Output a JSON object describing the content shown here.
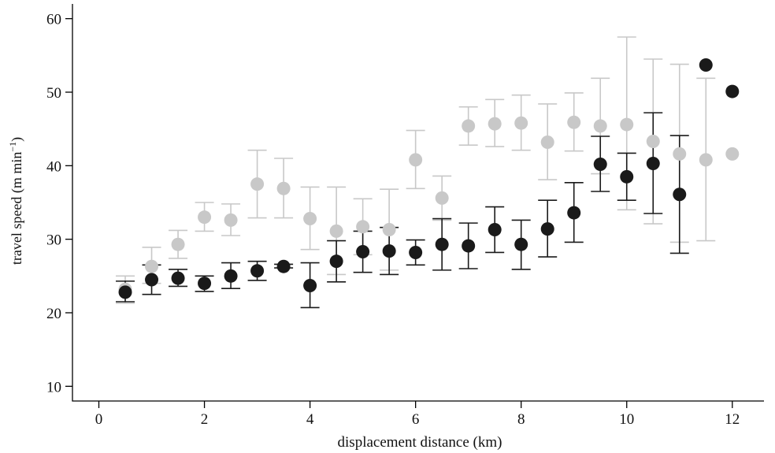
{
  "chart_data": {
    "type": "scatter",
    "title": "",
    "xlabel": "displacement distance (km)",
    "ylabel": "travel speed (m min",
    "ylabel_sup": "−1",
    "ylabel_close": ")",
    "xlim": [
      -0.5,
      12.6
    ],
    "ylim": [
      8,
      62
    ],
    "xticks": [
      0,
      2,
      4,
      6,
      8,
      10,
      12
    ],
    "yticks": [
      10,
      20,
      30,
      40,
      50,
      60
    ],
    "grid": false,
    "series": [
      {
        "color": "#c8c8c8",
        "points": [
          {
            "x": 0.5,
            "y": 23.2,
            "lo": 21.3,
            "hi": 25.0
          },
          {
            "x": 1.0,
            "y": 26.3,
            "lo": 24.0,
            "hi": 28.9
          },
          {
            "x": 1.5,
            "y": 29.3,
            "lo": 27.4,
            "hi": 31.2
          },
          {
            "x": 2.0,
            "y": 33.0,
            "lo": 31.1,
            "hi": 35.0
          },
          {
            "x": 2.5,
            "y": 32.6,
            "lo": 30.5,
            "hi": 34.8
          },
          {
            "x": 3.0,
            "y": 37.5,
            "lo": 32.9,
            "hi": 42.1
          },
          {
            "x": 3.5,
            "y": 36.9,
            "lo": 32.9,
            "hi": 41.0
          },
          {
            "x": 4.0,
            "y": 32.8,
            "lo": 28.6,
            "hi": 37.1
          },
          {
            "x": 4.5,
            "y": 31.1,
            "lo": 25.2,
            "hi": 37.1
          },
          {
            "x": 5.0,
            "y": 31.7,
            "lo": 27.9,
            "hi": 35.5
          },
          {
            "x": 5.5,
            "y": 31.3,
            "lo": 25.8,
            "hi": 36.8
          },
          {
            "x": 6.0,
            "y": 40.8,
            "lo": 36.9,
            "hi": 44.8
          },
          {
            "x": 6.5,
            "y": 35.6,
            "lo": 32.6,
            "hi": 38.6
          },
          {
            "x": 7.0,
            "y": 45.4,
            "lo": 42.8,
            "hi": 48.0
          },
          {
            "x": 7.5,
            "y": 45.7,
            "lo": 42.6,
            "hi": 49.0
          },
          {
            "x": 8.0,
            "y": 45.8,
            "lo": 42.1,
            "hi": 49.6
          },
          {
            "x": 8.5,
            "y": 43.2,
            "lo": 38.1,
            "hi": 48.4
          },
          {
            "x": 9.0,
            "y": 45.9,
            "lo": 42.0,
            "hi": 49.9
          },
          {
            "x": 9.5,
            "y": 45.4,
            "lo": 38.9,
            "hi": 51.9
          },
          {
            "x": 10.0,
            "y": 45.6,
            "lo": 34.0,
            "hi": 57.5
          },
          {
            "x": 10.5,
            "y": 43.3,
            "lo": 32.1,
            "hi": 54.5
          },
          {
            "x": 11.0,
            "y": 41.6,
            "lo": 29.6,
            "hi": 53.8
          },
          {
            "x": 11.5,
            "y": 40.8,
            "lo": 29.8,
            "hi": 51.9
          },
          {
            "x": 12.0,
            "y": 41.6
          }
        ]
      },
      {
        "color": "#1a1a1a",
        "points": [
          {
            "x": 0.5,
            "y": 22.8,
            "lo": 21.5,
            "hi": 24.3
          },
          {
            "x": 1.0,
            "y": 24.5,
            "lo": 22.5,
            "hi": 26.5
          },
          {
            "x": 1.5,
            "y": 24.7,
            "lo": 23.6,
            "hi": 25.9
          },
          {
            "x": 2.0,
            "y": 24.0,
            "lo": 22.9,
            "hi": 25.0
          },
          {
            "x": 2.5,
            "y": 25.0,
            "lo": 23.3,
            "hi": 26.8
          },
          {
            "x": 3.0,
            "y": 25.7,
            "lo": 24.4,
            "hi": 27.0
          },
          {
            "x": 3.5,
            "y": 26.3,
            "lo": 26.1,
            "hi": 26.6
          },
          {
            "x": 4.0,
            "y": 23.7,
            "lo": 20.7,
            "hi": 26.8
          },
          {
            "x": 4.5,
            "y": 27.0,
            "lo": 24.2,
            "hi": 29.8
          },
          {
            "x": 5.0,
            "y": 28.3,
            "lo": 25.5,
            "hi": 31.1
          },
          {
            "x": 5.5,
            "y": 28.4,
            "lo": 25.2,
            "hi": 31.6
          },
          {
            "x": 6.0,
            "y": 28.2,
            "lo": 26.5,
            "hi": 29.9
          },
          {
            "x": 6.5,
            "y": 29.3,
            "lo": 25.8,
            "hi": 32.8
          },
          {
            "x": 7.0,
            "y": 29.1,
            "lo": 26.0,
            "hi": 32.2
          },
          {
            "x": 7.5,
            "y": 31.3,
            "lo": 28.2,
            "hi": 34.4
          },
          {
            "x": 8.0,
            "y": 29.3,
            "lo": 25.9,
            "hi": 32.6
          },
          {
            "x": 8.5,
            "y": 31.4,
            "lo": 27.6,
            "hi": 35.3
          },
          {
            "x": 9.0,
            "y": 33.6,
            "lo": 29.6,
            "hi": 37.7
          },
          {
            "x": 9.5,
            "y": 40.2,
            "lo": 36.5,
            "hi": 44.0
          },
          {
            "x": 10.0,
            "y": 38.5,
            "lo": 35.3,
            "hi": 41.7
          },
          {
            "x": 10.5,
            "y": 40.3,
            "lo": 33.5,
            "hi": 47.2
          },
          {
            "x": 11.0,
            "y": 36.1,
            "lo": 28.1,
            "hi": 44.1
          },
          {
            "x": 11.5,
            "y": 53.7
          },
          {
            "x": 12.0,
            "y": 50.1
          }
        ]
      }
    ]
  }
}
